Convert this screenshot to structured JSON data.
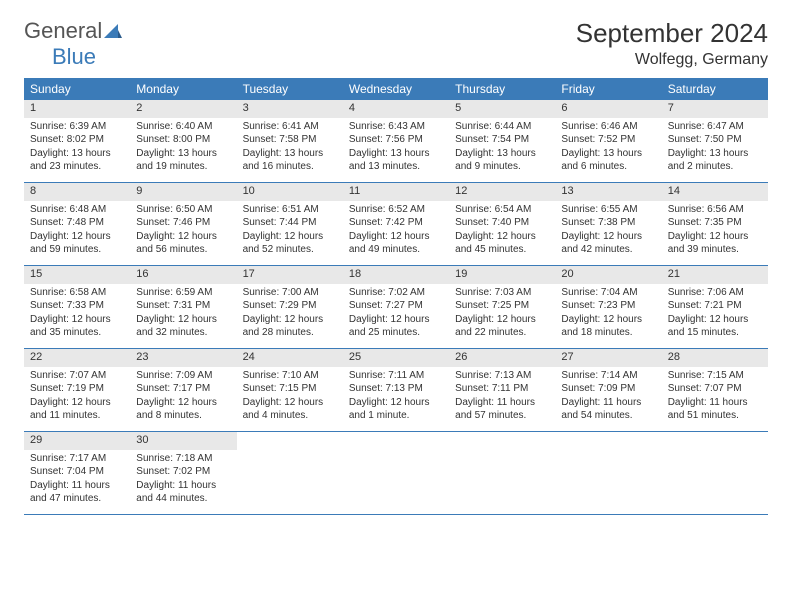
{
  "logo": {
    "text1": "General",
    "text2": "Blue"
  },
  "title": "September 2024",
  "location": "Wolfegg, Germany",
  "colors": {
    "header_bg": "#3b7bb8",
    "daynum_bg": "#e8e8e8",
    "border": "#3b7bb8",
    "text": "#333333",
    "logo_blue": "#3b7bb8"
  },
  "day_labels": [
    "Sunday",
    "Monday",
    "Tuesday",
    "Wednesday",
    "Thursday",
    "Friday",
    "Saturday"
  ],
  "weeks": [
    [
      {
        "n": "1",
        "sr": "Sunrise: 6:39 AM",
        "ss": "Sunset: 8:02 PM",
        "d1": "Daylight: 13 hours",
        "d2": "and 23 minutes."
      },
      {
        "n": "2",
        "sr": "Sunrise: 6:40 AM",
        "ss": "Sunset: 8:00 PM",
        "d1": "Daylight: 13 hours",
        "d2": "and 19 minutes."
      },
      {
        "n": "3",
        "sr": "Sunrise: 6:41 AM",
        "ss": "Sunset: 7:58 PM",
        "d1": "Daylight: 13 hours",
        "d2": "and 16 minutes."
      },
      {
        "n": "4",
        "sr": "Sunrise: 6:43 AM",
        "ss": "Sunset: 7:56 PM",
        "d1": "Daylight: 13 hours",
        "d2": "and 13 minutes."
      },
      {
        "n": "5",
        "sr": "Sunrise: 6:44 AM",
        "ss": "Sunset: 7:54 PM",
        "d1": "Daylight: 13 hours",
        "d2": "and 9 minutes."
      },
      {
        "n": "6",
        "sr": "Sunrise: 6:46 AM",
        "ss": "Sunset: 7:52 PM",
        "d1": "Daylight: 13 hours",
        "d2": "and 6 minutes."
      },
      {
        "n": "7",
        "sr": "Sunrise: 6:47 AM",
        "ss": "Sunset: 7:50 PM",
        "d1": "Daylight: 13 hours",
        "d2": "and 2 minutes."
      }
    ],
    [
      {
        "n": "8",
        "sr": "Sunrise: 6:48 AM",
        "ss": "Sunset: 7:48 PM",
        "d1": "Daylight: 12 hours",
        "d2": "and 59 minutes."
      },
      {
        "n": "9",
        "sr": "Sunrise: 6:50 AM",
        "ss": "Sunset: 7:46 PM",
        "d1": "Daylight: 12 hours",
        "d2": "and 56 minutes."
      },
      {
        "n": "10",
        "sr": "Sunrise: 6:51 AM",
        "ss": "Sunset: 7:44 PM",
        "d1": "Daylight: 12 hours",
        "d2": "and 52 minutes."
      },
      {
        "n": "11",
        "sr": "Sunrise: 6:52 AM",
        "ss": "Sunset: 7:42 PM",
        "d1": "Daylight: 12 hours",
        "d2": "and 49 minutes."
      },
      {
        "n": "12",
        "sr": "Sunrise: 6:54 AM",
        "ss": "Sunset: 7:40 PM",
        "d1": "Daylight: 12 hours",
        "d2": "and 45 minutes."
      },
      {
        "n": "13",
        "sr": "Sunrise: 6:55 AM",
        "ss": "Sunset: 7:38 PM",
        "d1": "Daylight: 12 hours",
        "d2": "and 42 minutes."
      },
      {
        "n": "14",
        "sr": "Sunrise: 6:56 AM",
        "ss": "Sunset: 7:35 PM",
        "d1": "Daylight: 12 hours",
        "d2": "and 39 minutes."
      }
    ],
    [
      {
        "n": "15",
        "sr": "Sunrise: 6:58 AM",
        "ss": "Sunset: 7:33 PM",
        "d1": "Daylight: 12 hours",
        "d2": "and 35 minutes."
      },
      {
        "n": "16",
        "sr": "Sunrise: 6:59 AM",
        "ss": "Sunset: 7:31 PM",
        "d1": "Daylight: 12 hours",
        "d2": "and 32 minutes."
      },
      {
        "n": "17",
        "sr": "Sunrise: 7:00 AM",
        "ss": "Sunset: 7:29 PM",
        "d1": "Daylight: 12 hours",
        "d2": "and 28 minutes."
      },
      {
        "n": "18",
        "sr": "Sunrise: 7:02 AM",
        "ss": "Sunset: 7:27 PM",
        "d1": "Daylight: 12 hours",
        "d2": "and 25 minutes."
      },
      {
        "n": "19",
        "sr": "Sunrise: 7:03 AM",
        "ss": "Sunset: 7:25 PM",
        "d1": "Daylight: 12 hours",
        "d2": "and 22 minutes."
      },
      {
        "n": "20",
        "sr": "Sunrise: 7:04 AM",
        "ss": "Sunset: 7:23 PM",
        "d1": "Daylight: 12 hours",
        "d2": "and 18 minutes."
      },
      {
        "n": "21",
        "sr": "Sunrise: 7:06 AM",
        "ss": "Sunset: 7:21 PM",
        "d1": "Daylight: 12 hours",
        "d2": "and 15 minutes."
      }
    ],
    [
      {
        "n": "22",
        "sr": "Sunrise: 7:07 AM",
        "ss": "Sunset: 7:19 PM",
        "d1": "Daylight: 12 hours",
        "d2": "and 11 minutes."
      },
      {
        "n": "23",
        "sr": "Sunrise: 7:09 AM",
        "ss": "Sunset: 7:17 PM",
        "d1": "Daylight: 12 hours",
        "d2": "and 8 minutes."
      },
      {
        "n": "24",
        "sr": "Sunrise: 7:10 AM",
        "ss": "Sunset: 7:15 PM",
        "d1": "Daylight: 12 hours",
        "d2": "and 4 minutes."
      },
      {
        "n": "25",
        "sr": "Sunrise: 7:11 AM",
        "ss": "Sunset: 7:13 PM",
        "d1": "Daylight: 12 hours",
        "d2": "and 1 minute."
      },
      {
        "n": "26",
        "sr": "Sunrise: 7:13 AM",
        "ss": "Sunset: 7:11 PM",
        "d1": "Daylight: 11 hours",
        "d2": "and 57 minutes."
      },
      {
        "n": "27",
        "sr": "Sunrise: 7:14 AM",
        "ss": "Sunset: 7:09 PM",
        "d1": "Daylight: 11 hours",
        "d2": "and 54 minutes."
      },
      {
        "n": "28",
        "sr": "Sunrise: 7:15 AM",
        "ss": "Sunset: 7:07 PM",
        "d1": "Daylight: 11 hours",
        "d2": "and 51 minutes."
      }
    ],
    [
      {
        "n": "29",
        "sr": "Sunrise: 7:17 AM",
        "ss": "Sunset: 7:04 PM",
        "d1": "Daylight: 11 hours",
        "d2": "and 47 minutes."
      },
      {
        "n": "30",
        "sr": "Sunrise: 7:18 AM",
        "ss": "Sunset: 7:02 PM",
        "d1": "Daylight: 11 hours",
        "d2": "and 44 minutes."
      },
      null,
      null,
      null,
      null,
      null
    ]
  ]
}
